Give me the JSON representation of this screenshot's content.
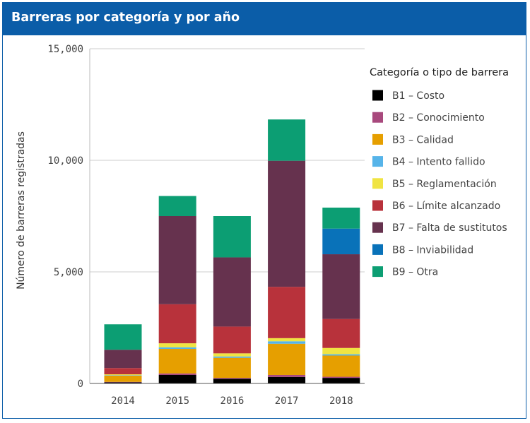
{
  "header": {
    "title": "Barreras por categoría y por año"
  },
  "chart_data": {
    "type": "bar",
    "stacked": true,
    "title": "",
    "xlabel": "",
    "ylabel": "Número de barreras registradas",
    "ylim": [
      0,
      15000
    ],
    "y_ticks": [
      0,
      5000,
      10000,
      15000
    ],
    "y_tick_labels": [
      "0",
      "5,000",
      "10,000",
      "15,000"
    ],
    "grid": true,
    "categories": [
      "2014",
      "2015",
      "2016",
      "2017",
      "2018"
    ],
    "legend": {
      "title": "Categoría o tipo de barrera",
      "placement": "right"
    },
    "series": [
      {
        "name": "B1 – Costo",
        "color": "#000000",
        "values": [
          50,
          380,
          210,
          290,
          250
        ]
      },
      {
        "name": "B2 – Conocimiento",
        "color": "#a8497d",
        "values": [
          20,
          70,
          40,
          90,
          50
        ]
      },
      {
        "name": "B3 – Calidad",
        "color": "#e69f00",
        "values": [
          280,
          1100,
          900,
          1400,
          950
        ]
      },
      {
        "name": "B4 – Intento fallido",
        "color": "#56b4e9",
        "values": [
          20,
          70,
          60,
          110,
          60
        ]
      },
      {
        "name": "B5 – Reglamentación",
        "color": "#f0e442",
        "values": [
          40,
          180,
          140,
          140,
          280
        ]
      },
      {
        "name": "B6 – Límite alcanzado",
        "color": "#b8323b",
        "values": [
          280,
          1750,
          1200,
          2300,
          1300
        ]
      },
      {
        "name": "B7 – Falta de sustitutos",
        "color": "#66324e",
        "values": [
          820,
          3950,
          3100,
          5650,
          2900
        ]
      },
      {
        "name": "B8 – Inviabilidad",
        "color": "#0972b9",
        "values": [
          0,
          0,
          0,
          0,
          1150
        ]
      },
      {
        "name": "B9 – Otra",
        "color": "#0c9e73",
        "values": [
          1140,
          900,
          1850,
          1850,
          940
        ]
      }
    ]
  }
}
